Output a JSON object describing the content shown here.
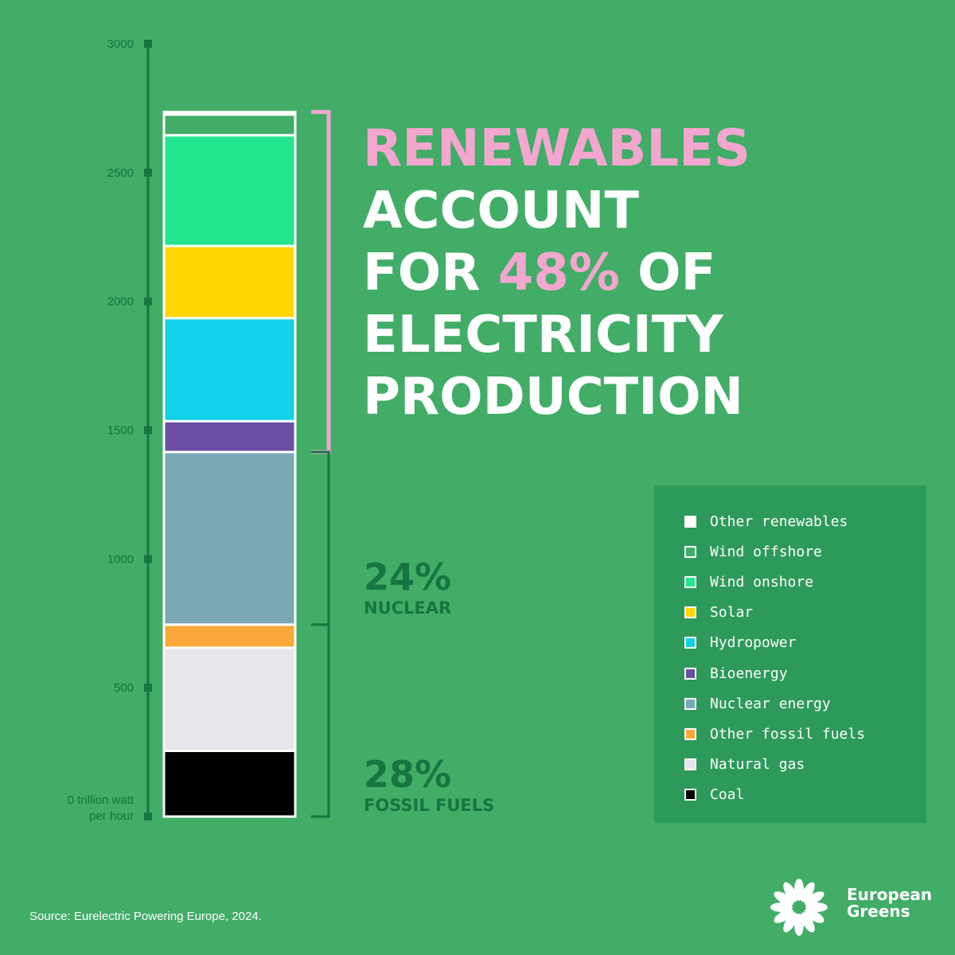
{
  "chart_data": {
    "type": "bar",
    "orientation": "vertical-stacked",
    "ylim": [
      0,
      3000
    ],
    "yticks": [
      0,
      500,
      1000,
      1500,
      2000,
      2500,
      3000
    ],
    "ytick_labels": [
      "",
      "500",
      "1000",
      "1500",
      "2000",
      "2500",
      "3000"
    ],
    "y_zero_label": [
      "0 trillion watt",
      "per hour"
    ],
    "series": [
      {
        "name": "Coal",
        "value": 255,
        "color": "#000000"
      },
      {
        "name": "Natural gas",
        "value": 400,
        "color": "#e8e6ea"
      },
      {
        "name": "Other fossil fuels",
        "value": 90,
        "color": "#f8a93a"
      },
      {
        "name": "Nuclear energy",
        "value": 670,
        "color": "#7aa8b5"
      },
      {
        "name": "Bioenergy",
        "value": 120,
        "color": "#6b4ea2"
      },
      {
        "name": "Hydropower",
        "value": 400,
        "color": "#12d1e8"
      },
      {
        "name": "Solar",
        "value": 280,
        "color": "#ffd600"
      },
      {
        "name": "Wind onshore",
        "value": 430,
        "color": "#23e58e"
      },
      {
        "name": "Wind offshore",
        "value": 80,
        "color": "#41ad67"
      },
      {
        "name": "Other renewables",
        "value": 10,
        "color": "#ffffff"
      }
    ],
    "legend_order": [
      "Other renewables",
      "Wind offshore",
      "Wind onshore",
      "Solar",
      "Hydropower",
      "Bioenergy",
      "Nuclear energy",
      "Other fossil fuels",
      "Natural gas",
      "Coal"
    ],
    "legend_placement": "right"
  },
  "headline": {
    "line1": "RENEWABLES",
    "line2": "ACCOUNT",
    "line3_pre": "FOR ",
    "line3_pct": "48%",
    "line3_post": " OF",
    "line4": "ELECTRICITY",
    "line5": "PRODUCTION"
  },
  "shares": {
    "nuclear": {
      "pct": "24%",
      "label": "NUCLEAR"
    },
    "fossil": {
      "pct": "28%",
      "label": "FOSSIL FUELS"
    }
  },
  "source": "Source: Eurelectric Powering Europe, 2024.",
  "logo": {
    "line1": "European",
    "line2": "Greens"
  },
  "colors": {
    "background": "#41ad67",
    "accent_pink": "#f3a6cf",
    "dark_green": "#177541",
    "legend_bg": "#2d9a5a"
  }
}
